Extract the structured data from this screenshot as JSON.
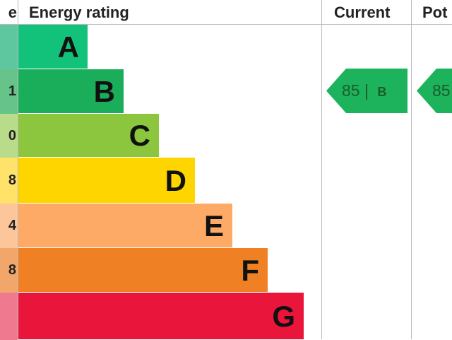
{
  "chart_data": {
    "type": "bar",
    "title": "",
    "headers": {
      "score": "e",
      "rating": "Energy rating",
      "current": "Current",
      "potential": "Pot"
    },
    "bands": [
      {
        "letter": "A",
        "score_label": "",
        "color": "#12c27a",
        "score_color": "#5fc7a0"
      },
      {
        "letter": "B",
        "score_label": "1",
        "color": "#1aae5a",
        "score_color": "#66c48a"
      },
      {
        "letter": "C",
        "score_label": "0",
        "color": "#8cc63f",
        "score_color": "#b9dc8a"
      },
      {
        "letter": "D",
        "score_label": "8",
        "color": "#ffd500",
        "score_color": "#ffe26a"
      },
      {
        "letter": "E",
        "score_label": "4",
        "color": "#fcaa65",
        "score_color": "#fdc59a"
      },
      {
        "letter": "F",
        "score_label": "8",
        "color": "#ef8023",
        "score_color": "#f3a66a"
      },
      {
        "letter": "G",
        "score_label": "",
        "color": "#e9153b",
        "score_color": "#ef7a90"
      }
    ],
    "current": {
      "value": 85,
      "band": "B",
      "label": "85 |",
      "band_label": "B",
      "color": "#1db35c"
    },
    "potential": {
      "value": 85,
      "label": "85",
      "color": "#1db35c"
    }
  }
}
